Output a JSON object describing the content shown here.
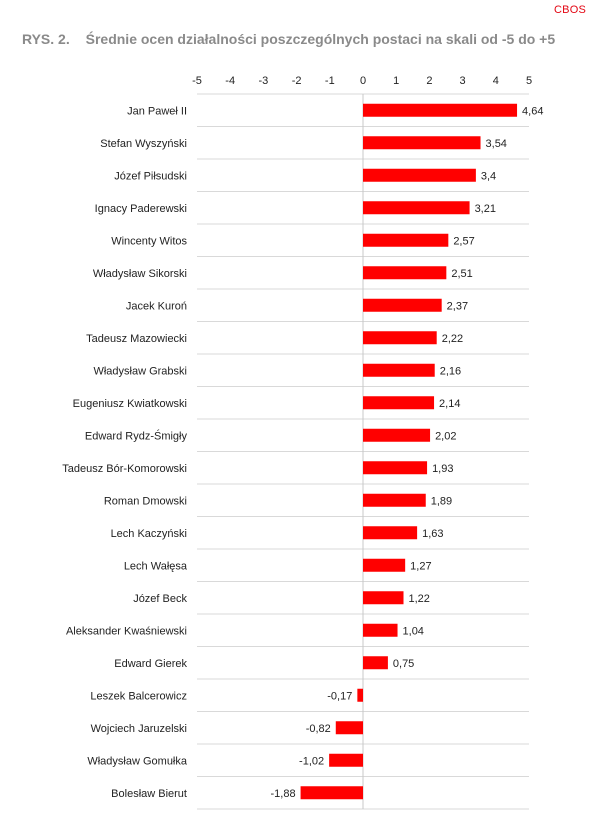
{
  "header": {
    "brand": "CBOS",
    "figure_number": "RYS. 2.",
    "title": "Średnie ocen działalności poszczególnych postaci na skali od -5 do +5"
  },
  "colors": {
    "bar": "#ff0000",
    "brand": "#e30613",
    "title": "#8a8a8a",
    "grid": "#d9d9d9",
    "text": "#222222"
  },
  "chart_data": {
    "type": "bar",
    "orientation": "horizontal",
    "title": "Średnie ocen działalności poszczególnych postaci na skali od -5 do +5",
    "xlim": [
      -5,
      5
    ],
    "x_ticks": [
      "-5",
      "-4",
      "-3",
      "-2",
      "-1",
      "0",
      "1",
      "2",
      "3",
      "4",
      "5"
    ],
    "x_axis_position": "top",
    "grid": "horizontal row separators",
    "categories": [
      "Jan Paweł II",
      "Stefan Wyszyński",
      "Józef Piłsudski",
      "Ignacy Paderewski",
      "Wincenty Witos",
      "Władysław Sikorski",
      "Jacek Kuroń",
      "Tadeusz Mazowiecki",
      "Władysław Grabski",
      "Eugeniusz Kwiatkowski",
      "Edward Rydz-Śmigły",
      "Tadeusz Bór-Komorowski",
      "Roman Dmowski",
      "Lech Kaczyński",
      "Lech Wałęsa",
      "Józef Beck",
      "Aleksander Kwaśniewski",
      "Edward Gierek",
      "Leszek Balcerowicz",
      "Wojciech Jaruzelski",
      "Władysław Gomułka",
      "Bolesław Bierut"
    ],
    "values": [
      4.64,
      3.54,
      3.4,
      3.21,
      2.57,
      2.51,
      2.37,
      2.22,
      2.16,
      2.14,
      2.02,
      1.93,
      1.89,
      1.63,
      1.27,
      1.22,
      1.04,
      0.75,
      -0.17,
      -0.82,
      -1.02,
      -1.88
    ],
    "value_labels": [
      "4,64",
      "3,54",
      "3,4",
      "3,21",
      "2,57",
      "2,51",
      "2,37",
      "2,22",
      "2,16",
      "2,14",
      "2,02",
      "1,93",
      "1,89",
      "1,63",
      "1,27",
      "1,22",
      "1,04",
      "0,75",
      "-0,17",
      "-0,82",
      "-1,02",
      "-1,88"
    ]
  }
}
